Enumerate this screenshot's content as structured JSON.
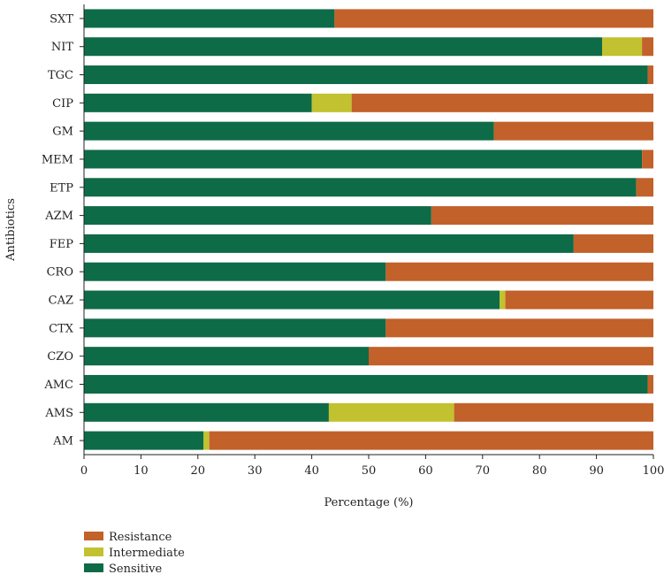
{
  "chart_data": {
    "type": "bar",
    "orientation": "horizontal",
    "stacked": true,
    "categories": [
      "SXT",
      "NIT",
      "TGC",
      "CIP",
      "GM",
      "MEM",
      "ETP",
      "AZM",
      "FEP",
      "CRO",
      "CAZ",
      "CTX",
      "CZO",
      "AMC",
      "AMS",
      "AM"
    ],
    "series": [
      {
        "name": "Sensitive",
        "color": "#0e6b47",
        "values": [
          44,
          91,
          99,
          40,
          72,
          98,
          97,
          61,
          86,
          53,
          73,
          53,
          50,
          99,
          43,
          21
        ]
      },
      {
        "name": "Intermediate",
        "color": "#c2c12f",
        "values": [
          0,
          7,
          0,
          7,
          0,
          0,
          0,
          0,
          0,
          0,
          1,
          0,
          0,
          0,
          22,
          1
        ]
      },
      {
        "name": "Resistance",
        "color": "#c2612a",
        "values": [
          56,
          2,
          1,
          53,
          28,
          2,
          3,
          39,
          14,
          47,
          26,
          47,
          50,
          1,
          35,
          78
        ]
      }
    ],
    "xlabel": "Percentage (%)",
    "ylabel": "Antibiotics",
    "xlim": [
      0,
      100
    ],
    "xticks": [
      0,
      10,
      20,
      30,
      40,
      50,
      60,
      70,
      80,
      90,
      100
    ],
    "legend": {
      "position": "bottom-left",
      "order": [
        "Resistance",
        "Intermediate",
        "Sensitive"
      ]
    },
    "grid": false
  }
}
